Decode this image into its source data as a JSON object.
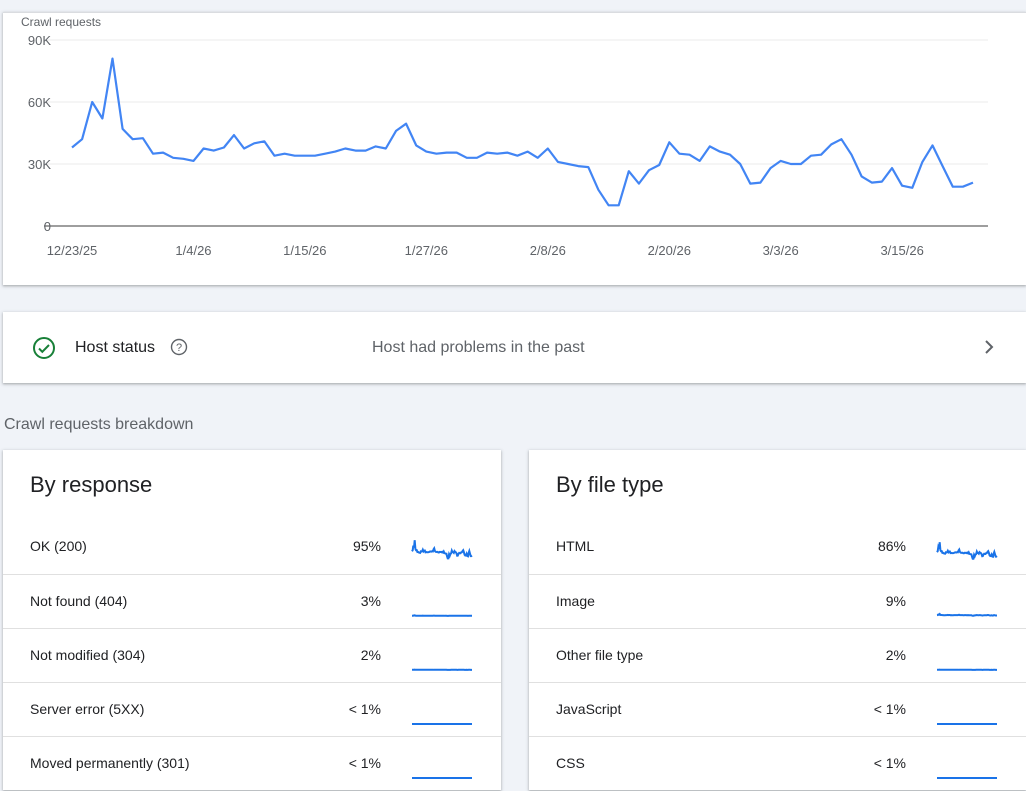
{
  "chart_data": {
    "type": "line",
    "title": "Crawl requests",
    "ylim": [
      0,
      90000
    ],
    "yticks": [
      "0",
      "30K",
      "60K",
      "90K"
    ],
    "ytick_values": [
      0,
      30000,
      60000,
      90000
    ],
    "xticks": [
      "12/23/25",
      "1/4/26",
      "1/15/26",
      "1/27/26",
      "2/8/26",
      "2/20/26",
      "3/3/26",
      "3/15/26"
    ],
    "x_start": "12/23/25",
    "x_end": "3/22/26",
    "grid": true,
    "color": "#4285f4",
    "values": [
      38000,
      42000,
      60000,
      52000,
      81000,
      47000,
      42000,
      42500,
      35000,
      35500,
      33000,
      32500,
      31500,
      37500,
      36500,
      38000,
      44000,
      37500,
      40000,
      41000,
      34000,
      35000,
      34000,
      34000,
      34000,
      35000,
      36000,
      37500,
      36500,
      36500,
      38500,
      37500,
      46000,
      49500,
      39000,
      36000,
      35000,
      35500,
      35500,
      33000,
      33000,
      35500,
      35000,
      35500,
      34000,
      36000,
      33000,
      37500,
      31000,
      30000,
      29000,
      28500,
      17500,
      10000,
      10000,
      26500,
      20500,
      27000,
      29500,
      40500,
      35000,
      34500,
      31500,
      38500,
      36000,
      34500,
      30000,
      20500,
      21000,
      28000,
      31500,
      30000,
      30000,
      34000,
      34500,
      39500,
      42000,
      34500,
      24000,
      21000,
      21500,
      28000,
      19500,
      18500,
      31000,
      39000,
      29000,
      19000,
      19000,
      21000
    ]
  },
  "host": {
    "label": "Host status",
    "status": "Host had problems in the past",
    "status_color": "#188038",
    "icons": [
      "check-circle-icon",
      "help-icon",
      "chevron-right-icon"
    ]
  },
  "breakdown": {
    "title": "Crawl requests breakdown",
    "by_response": {
      "title": "By response",
      "rows": [
        {
          "label": "OK (200)",
          "pct": "95%"
        },
        {
          "label": "Not found (404)",
          "pct": "3%"
        },
        {
          "label": "Not modified (304)",
          "pct": "2%"
        },
        {
          "label": "Server error (5XX)",
          "pct": "< 1%"
        },
        {
          "label": "Moved permanently (301)",
          "pct": "< 1%"
        }
      ]
    },
    "by_file_type": {
      "title": "By file type",
      "rows": [
        {
          "label": "HTML",
          "pct": "86%"
        },
        {
          "label": "Image",
          "pct": "9%"
        },
        {
          "label": "Other file type",
          "pct": "2%"
        },
        {
          "label": "JavaScript",
          "pct": "< 1%"
        },
        {
          "label": "CSS",
          "pct": "< 1%"
        }
      ]
    },
    "sparkline_color": "#1a73e8"
  }
}
